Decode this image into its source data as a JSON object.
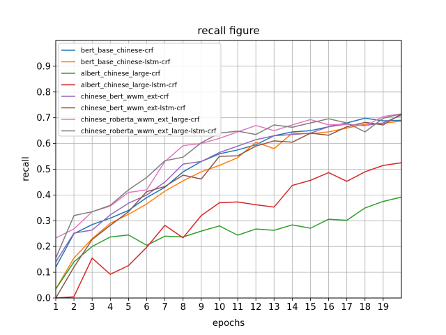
{
  "chart_data": {
    "type": "line",
    "title": "recall figure",
    "xlabel": "epochs",
    "ylabel": "recall",
    "xlim": [
      1,
      20
    ],
    "ylim": [
      0.0,
      1.0
    ],
    "x": [
      1,
      2,
      3,
      4,
      5,
      6,
      7,
      8,
      9,
      10,
      11,
      12,
      13,
      14,
      15,
      16,
      17,
      18,
      19,
      20
    ],
    "xticks": [
      "1",
      "2",
      "3",
      "4",
      "5",
      "6",
      "7",
      "8",
      "9",
      "10",
      "11",
      "12",
      "13",
      "14",
      "15",
      "16",
      "17",
      "18",
      "19"
    ],
    "yticks": [
      "0.0",
      "0.1",
      "0.2",
      "0.3",
      "0.4",
      "0.5",
      "0.6",
      "0.7",
      "0.8",
      "0.9"
    ],
    "grid": true,
    "legend_position": "top-left",
    "series": [
      {
        "name": "bert_base_chinese-crf",
        "color": "#1f77b4",
        "values": [
          0.12,
          0.25,
          0.285,
          0.31,
          0.34,
          0.39,
          0.43,
          0.49,
          0.53,
          0.56,
          0.575,
          0.595,
          0.63,
          0.645,
          0.65,
          0.665,
          0.68,
          0.698,
          0.688,
          0.69
        ]
      },
      {
        "name": "bert_base_chinese-lstm-crf",
        "color": "#ff7f0e",
        "values": [
          0.035,
          0.155,
          0.23,
          0.29,
          0.325,
          0.365,
          0.415,
          0.455,
          0.49,
          0.515,
          0.545,
          0.605,
          0.58,
          0.64,
          0.638,
          0.645,
          0.66,
          0.675,
          0.678,
          0.687
        ]
      },
      {
        "name": "albert_chinese_large-crf",
        "color": "#2ca02c",
        "values": [
          0.035,
          0.14,
          0.2,
          0.237,
          0.245,
          0.205,
          0.24,
          0.237,
          0.26,
          0.28,
          0.244,
          0.268,
          0.263,
          0.284,
          0.271,
          0.306,
          0.302,
          0.35,
          0.375,
          0.392
        ]
      },
      {
        "name": "albert_chinese_large-lstm-crf",
        "color": "#d62728",
        "values": [
          0.0,
          0.005,
          0.155,
          0.092,
          0.126,
          0.197,
          0.282,
          0.234,
          0.32,
          0.37,
          0.373,
          0.362,
          0.353,
          0.437,
          0.457,
          0.487,
          0.453,
          0.49,
          0.515,
          0.525
        ]
      },
      {
        "name": "chinese_bert_wwm_ext-crf",
        "color": "#9467bd",
        "values": [
          0.14,
          0.252,
          0.264,
          0.323,
          0.368,
          0.4,
          0.45,
          0.52,
          0.53,
          0.565,
          0.59,
          0.615,
          0.63,
          0.635,
          0.64,
          0.665,
          0.675,
          0.67,
          0.68,
          0.71
        ]
      },
      {
        "name": "chinese_bert_wwm_ext-lstm-crf",
        "color": "#8c564b",
        "values": [
          0.0,
          0.12,
          0.227,
          0.282,
          0.335,
          0.413,
          0.433,
          0.477,
          0.462,
          0.55,
          0.552,
          0.59,
          0.61,
          0.605,
          0.64,
          0.632,
          0.665,
          0.682,
          0.672,
          0.715
        ]
      },
      {
        "name": "chinese_roberta_wwm_ext_large-crf",
        "color": "#e377c2",
        "values": [
          0.233,
          0.268,
          0.335,
          0.357,
          0.41,
          0.42,
          0.53,
          0.592,
          0.6,
          0.62,
          0.645,
          0.67,
          0.65,
          0.672,
          0.693,
          0.672,
          0.675,
          0.668,
          0.705,
          0.715
        ]
      },
      {
        "name": "chinese_roberta_wwm_ext_large-lstm-crf",
        "color": "#7f7f7f",
        "values": [
          0.155,
          0.32,
          0.335,
          0.36,
          0.42,
          0.468,
          0.533,
          0.547,
          0.603,
          0.64,
          0.648,
          0.635,
          0.672,
          0.663,
          0.68,
          0.696,
          0.68,
          0.645,
          0.698,
          0.715
        ]
      }
    ]
  }
}
